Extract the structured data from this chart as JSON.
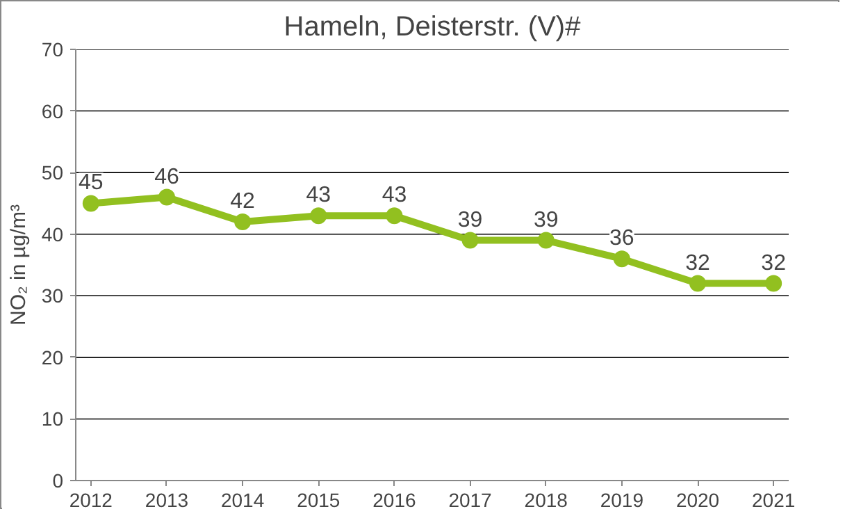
{
  "chart_data": {
    "type": "line",
    "title": "Hameln, Deisterstr. (V)#",
    "ylabel": "NO₂ in µg/m³",
    "x": [
      2012,
      2013,
      2014,
      2015,
      2016,
      2017,
      2018,
      2019,
      2020,
      2021
    ],
    "series": [
      {
        "color": "#92c020",
        "values": [
          45,
          46,
          42,
          43,
          43,
          39,
          39,
          36,
          32,
          32
        ]
      }
    ],
    "xlim": [
      2011.8,
      2021.2
    ],
    "xticks": [
      2012,
      2013,
      2014,
      2015,
      2016,
      2017,
      2018,
      2019,
      2020,
      2021
    ],
    "ylim": [
      0,
      70
    ],
    "yticks": [
      0,
      10,
      20,
      30,
      40,
      50,
      60,
      70
    ],
    "grid": "y",
    "marker": "circle",
    "line_style": "solid",
    "data_labels": true
  }
}
